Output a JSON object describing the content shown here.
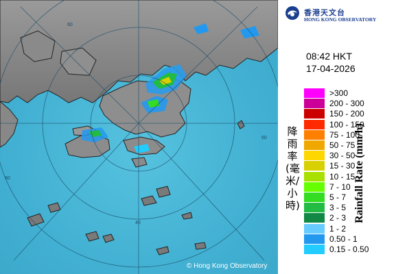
{
  "header": {
    "org_name_zh": "香港天文台",
    "org_name_en": "HONG KONG OBSERVATORY",
    "logo_icon": "hko-logo-icon"
  },
  "timestamp": {
    "time": "08:42 HKT",
    "date": "17-04-2026"
  },
  "legend": {
    "title_zh": "降雨率(毫米/小時)",
    "title_en": "Rainfall Rate (mm/h)",
    "items": [
      {
        "label": ">300",
        "color": "#ff00ff"
      },
      {
        "label": "200 - 300",
        "color": "#cc0099"
      },
      {
        "label": "150 - 200",
        "color": "#cc0000"
      },
      {
        "label": "100 - 150",
        "color": "#ff2a00"
      },
      {
        "label": "75 - 100",
        "color": "#ff7f00"
      },
      {
        "label": "50 - 75",
        "color": "#f0a800"
      },
      {
        "label": "30 - 50",
        "color": "#ffd700"
      },
      {
        "label": "15 - 30",
        "color": "#d8d000"
      },
      {
        "label": "10 - 15",
        "color": "#a8e000"
      },
      {
        "label": "7 - 10",
        "color": "#66ff00"
      },
      {
        "label": "5 - 7",
        "color": "#33dd22"
      },
      {
        "label": "3 - 5",
        "color": "#22bb44"
      },
      {
        "label": "2 - 3",
        "color": "#118844"
      },
      {
        "label": "1 - 2",
        "color": "#66ccff"
      },
      {
        "label": "0.50 - 1",
        "color": "#2299ee"
      },
      {
        "label": "0.15 - 0.50",
        "color": "#22ccff"
      }
    ]
  },
  "map": {
    "range_ring_labels": [
      "60",
      "60",
      "40",
      "60"
    ],
    "copyright": "© Hong Kong Observatory",
    "sea_color": "#3fb1d1",
    "land_color": "#8c8c8c"
  }
}
